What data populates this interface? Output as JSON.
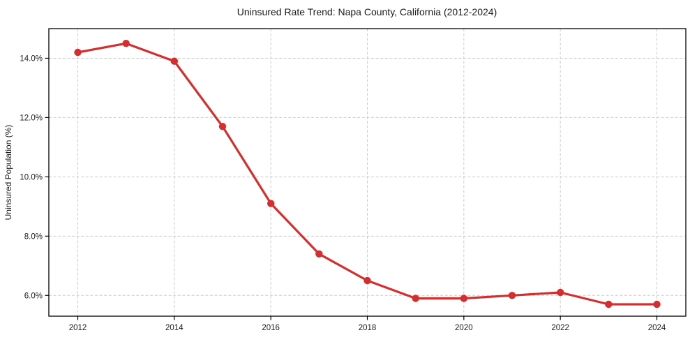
{
  "chart_data": {
    "type": "line",
    "title": "Uninsured Rate Trend: Napa County, California (2012-2024)",
    "xlabel": "",
    "ylabel": "Uninsured Population (%)",
    "x": [
      2012,
      2013,
      2014,
      2015,
      2016,
      2017,
      2018,
      2019,
      2020,
      2021,
      2022,
      2023,
      2024
    ],
    "values": [
      14.2,
      14.5,
      13.9,
      11.7,
      9.1,
      7.4,
      6.5,
      5.9,
      5.9,
      6.0,
      6.1,
      5.7,
      5.7
    ],
    "x_ticks": [
      2012,
      2014,
      2016,
      2018,
      2020,
      2022,
      2024
    ],
    "x_tick_labels": [
      "2012",
      "2014",
      "2016",
      "2018",
      "2020",
      "2022",
      "2024"
    ],
    "y_ticks": [
      6,
      8,
      10,
      12,
      14
    ],
    "y_tick_labels": [
      "6.0%",
      "8.0%",
      "10.0%",
      "12.0%",
      "14.0%"
    ],
    "xlim": [
      2011.4,
      2024.6
    ],
    "ylim": [
      5.3,
      15.0
    ],
    "grid": true,
    "legend": false,
    "colors": {
      "line": "#d32f2f",
      "grid": "#cccccc",
      "spine": "#000000",
      "text": "#1a1a1a",
      "background": "#ffffff"
    }
  }
}
